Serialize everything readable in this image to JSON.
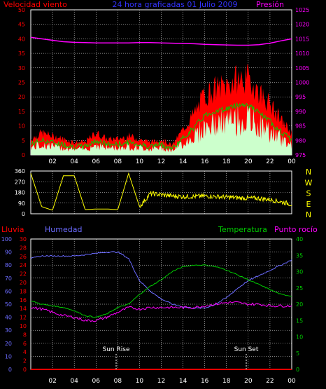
{
  "panel_wind": {
    "title": "24 hora graficadas  01 Julio 2009",
    "left_label": "Velocidad viento",
    "right_label": "Presión",
    "left_ticks": [
      "0",
      "5",
      "10",
      "15",
      "20",
      "25",
      "30",
      "35",
      "40",
      "45",
      "50"
    ],
    "right_ticks": [
      "975",
      "980",
      "985",
      "990",
      "995",
      "1000",
      "1005",
      "1010",
      "1015",
      "1020",
      "1025"
    ]
  },
  "panel_dir": {
    "left_ticks": [
      "0",
      "90",
      "180",
      "270",
      "360"
    ],
    "compass": [
      "N",
      "W",
      "S",
      "E",
      "N"
    ]
  },
  "panel_temp": {
    "label_rain": "Lluvia",
    "label_humidity": "Humedad",
    "label_temperature": "Temperatura",
    "label_dew": "Punto rocío",
    "humidity_ticks": [
      "0",
      "10",
      "20",
      "30",
      "40",
      "50",
      "60",
      "70",
      "80",
      "90",
      "100"
    ],
    "rain_ticks": [
      "0",
      "2",
      "4",
      "6",
      "8",
      "10",
      "12",
      "14",
      "16",
      "18",
      "20",
      "22",
      "24",
      "26",
      "28",
      "30"
    ],
    "right_ticks": [
      "0",
      "5",
      "10",
      "15",
      "20",
      "25",
      "30",
      "35",
      "40"
    ],
    "sunrise_label": "Sun Rise",
    "sunset_label": "Sun Set"
  },
  "x_ticks": [
    "02",
    "04",
    "06",
    "08",
    "10",
    "12",
    "14",
    "16",
    "18",
    "20",
    "22",
    "00"
  ],
  "colors": {
    "wind": "#ff0000",
    "gust": "#00cc00",
    "avg": "#ccffcc",
    "pressure": "#ff00ff",
    "direction": "#ffff00",
    "humidity": "#6b6bff",
    "temperature": "#00cc00",
    "dew": "#ff00ff",
    "rain": "#ff0000",
    "title": "#3333ff"
  },
  "chart_data": [
    {
      "type": "area",
      "x": [
        0,
        1,
        2,
        3,
        4,
        5,
        6,
        7,
        8,
        9,
        10,
        11,
        12,
        13,
        14,
        15,
        16,
        17,
        18,
        19,
        20,
        21,
        22,
        23,
        24
      ],
      "series": [
        {
          "name": "Velocidad viento",
          "values": [
            5,
            7,
            6,
            5,
            4,
            4,
            7,
            5,
            5,
            6,
            5,
            4,
            5,
            3,
            8,
            13,
            19,
            21,
            22,
            24,
            24,
            20,
            16,
            11,
            7
          ]
        },
        {
          "name": "Presión",
          "values": [
            1015.5,
            1015,
            1014.5,
            1014,
            1013.8,
            1013.7,
            1013.6,
            1013.6,
            1013.6,
            1013.6,
            1013.7,
            1013.7,
            1013.6,
            1013.5,
            1013.4,
            1013.3,
            1013.1,
            1013,
            1012.9,
            1012.8,
            1012.8,
            1013,
            1013.5,
            1014.3,
            1015
          ]
        }
      ],
      "ylim_left": [
        0,
        50
      ],
      "ylim_right": [
        975,
        1025
      ]
    },
    {
      "type": "line",
      "x": [
        0,
        1,
        2,
        3,
        4,
        5,
        6,
        7,
        8,
        9,
        10,
        11,
        12,
        13,
        14,
        15,
        16,
        17,
        18,
        19,
        20,
        21,
        22,
        23,
        24
      ],
      "series": [
        {
          "name": "Dirección",
          "values": [
            340,
            60,
            30,
            320,
            320,
            35,
            40,
            40,
            35,
            340,
            60,
            170,
            160,
            150,
            145,
            145,
            150,
            145,
            140,
            135,
            130,
            130,
            120,
            100,
            80
          ]
        }
      ],
      "ylim": [
        0,
        360
      ]
    },
    {
      "type": "line",
      "x": [
        0,
        1,
        2,
        3,
        4,
        5,
        6,
        7,
        8,
        9,
        10,
        11,
        12,
        13,
        14,
        15,
        16,
        17,
        18,
        19,
        20,
        21,
        22,
        23,
        24
      ],
      "series": [
        {
          "name": "Humedad",
          "values": [
            85,
            87,
            87,
            87,
            87,
            88,
            89,
            90,
            90,
            85,
            68,
            60,
            54,
            50,
            48,
            47,
            47,
            50,
            55,
            62,
            68,
            72,
            76,
            80,
            84
          ]
        },
        {
          "name": "Temperatura",
          "values": [
            21,
            20,
            19.5,
            19,
            18,
            16.5,
            16,
            17,
            19,
            20,
            23,
            25.5,
            27.5,
            30,
            31.5,
            32,
            32,
            31.5,
            30.5,
            29,
            27.5,
            26,
            24.5,
            23,
            22.5
          ]
        },
        {
          "name": "Punto rocío",
          "values": [
            19,
            18.5,
            17.5,
            16.5,
            16,
            15,
            15,
            16,
            17.5,
            19,
            18.5,
            19,
            19,
            19,
            19,
            19,
            19.5,
            20,
            20.5,
            20.5,
            20,
            20,
            19.5,
            19.5,
            19.5
          ]
        },
        {
          "name": "Lluvia",
          "values": [
            0,
            0,
            0,
            0,
            0,
            0,
            0,
            0,
            0,
            0,
            0,
            0,
            0,
            0,
            0,
            0,
            0,
            0,
            0,
            0,
            0,
            0,
            0,
            0,
            0
          ]
        }
      ],
      "ylim_humidity": [
        0,
        100
      ],
      "ylim_rain": [
        0,
        30
      ],
      "ylim_temperature": [
        0,
        40
      ]
    }
  ]
}
